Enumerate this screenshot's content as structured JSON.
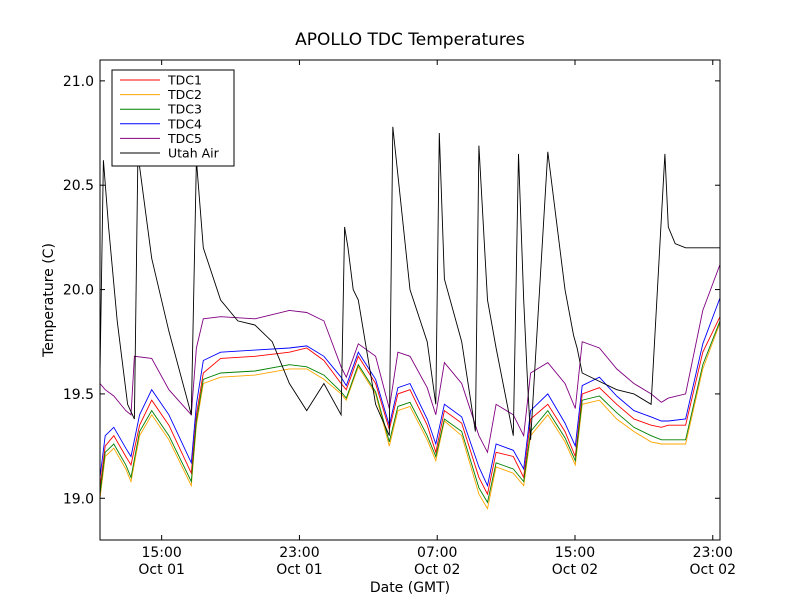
{
  "chart_data": {
    "type": "line",
    "title": "APOLLO TDC Temperatures",
    "xlabel": "Date (GMT)",
    "ylabel": "Temperature (C)",
    "x_unit": "hours since Oct 01 11:25 GMT",
    "xlim": [
      0,
      36
    ],
    "ylim": [
      18.8,
      21.1
    ],
    "legend_position": "top-left",
    "grid": false,
    "y_ticks": [
      {
        "value": 19.0,
        "label": "19.0"
      },
      {
        "value": 19.5,
        "label": "19.5"
      },
      {
        "value": 20.0,
        "label": "20.0"
      },
      {
        "value": 20.5,
        "label": "20.5"
      },
      {
        "value": 21.0,
        "label": "21.0"
      }
    ],
    "x_ticks": [
      {
        "value": 3.58,
        "time": "15:00",
        "date": "Oct 01"
      },
      {
        "value": 11.58,
        "time": "23:00",
        "date": "Oct 01"
      },
      {
        "value": 19.58,
        "time": "07:00",
        "date": "Oct 02"
      },
      {
        "value": 27.58,
        "time": "15:00",
        "date": "Oct 02"
      },
      {
        "value": 35.58,
        "time": "23:00",
        "date": "Oct 02"
      }
    ],
    "series": [
      {
        "name": "TDC1",
        "color": "#ff0000",
        "x": [
          0,
          0.3,
          0.8,
          1.5,
          1.8,
          2.3,
          3.0,
          4.0,
          5.3,
          5.6,
          6.0,
          7.0,
          9.0,
          11.0,
          12.0,
          13.0,
          14.0,
          14.3,
          15.0,
          16.0,
          16.8,
          17.3,
          18.0,
          19.0,
          19.5,
          20.0,
          21.0,
          22.0,
          22.5,
          23.0,
          24.0,
          24.6,
          25.0,
          26.0,
          27.0,
          27.6,
          28.0,
          29.0,
          30.0,
          31.0,
          32.0,
          32.6,
          33.0,
          34.0,
          35.0,
          36.0
        ],
        "y": [
          19.05,
          19.25,
          19.3,
          19.2,
          19.16,
          19.35,
          19.47,
          19.35,
          19.12,
          19.4,
          19.6,
          19.67,
          19.68,
          19.7,
          19.72,
          19.66,
          19.55,
          19.52,
          19.68,
          19.55,
          19.33,
          19.5,
          19.52,
          19.35,
          19.22,
          19.42,
          19.36,
          19.1,
          19.02,
          19.22,
          19.2,
          19.1,
          19.38,
          19.45,
          19.32,
          19.2,
          19.5,
          19.53,
          19.45,
          19.38,
          19.35,
          19.34,
          19.35,
          19.35,
          19.7,
          19.87
        ]
      },
      {
        "name": "TDC2",
        "color": "#ffa500",
        "x": [
          0,
          0.3,
          0.8,
          1.5,
          1.8,
          2.3,
          3.0,
          4.0,
          5.3,
          5.6,
          6.0,
          7.0,
          9.0,
          11.0,
          12.0,
          13.0,
          14.0,
          14.3,
          15.0,
          16.0,
          16.8,
          17.3,
          18.0,
          19.0,
          19.5,
          20.0,
          21.0,
          22.0,
          22.5,
          23.0,
          24.0,
          24.6,
          25.0,
          26.0,
          27.0,
          27.6,
          28.0,
          29.0,
          30.0,
          31.0,
          32.0,
          32.6,
          33.0,
          34.0,
          35.0,
          36.0
        ],
        "y": [
          19.0,
          19.2,
          19.24,
          19.14,
          19.08,
          19.3,
          19.4,
          19.28,
          19.06,
          19.35,
          19.55,
          19.58,
          19.59,
          19.62,
          19.62,
          19.57,
          19.5,
          19.47,
          19.63,
          19.5,
          19.25,
          19.42,
          19.44,
          19.28,
          19.18,
          19.37,
          19.3,
          19.02,
          18.95,
          19.15,
          19.12,
          19.06,
          19.3,
          19.4,
          19.27,
          19.16,
          19.45,
          19.47,
          19.38,
          19.32,
          19.27,
          19.26,
          19.26,
          19.26,
          19.62,
          19.84
        ]
      },
      {
        "name": "TDC3",
        "color": "#008000",
        "x": [
          0,
          0.3,
          0.8,
          1.5,
          1.8,
          2.3,
          3.0,
          4.0,
          5.3,
          5.6,
          6.0,
          7.0,
          9.0,
          11.0,
          12.0,
          13.0,
          14.0,
          14.3,
          15.0,
          16.0,
          16.8,
          17.3,
          18.0,
          19.0,
          19.5,
          20.0,
          21.0,
          22.0,
          22.5,
          23.0,
          24.0,
          24.6,
          25.0,
          26.0,
          27.0,
          27.6,
          28.0,
          29.0,
          30.0,
          31.0,
          32.0,
          32.6,
          33.0,
          34.0,
          35.0,
          36.0
        ],
        "y": [
          19.02,
          19.22,
          19.26,
          19.16,
          19.1,
          19.32,
          19.42,
          19.3,
          19.08,
          19.37,
          19.57,
          19.6,
          19.61,
          19.64,
          19.63,
          19.59,
          19.51,
          19.48,
          19.64,
          19.51,
          19.27,
          19.44,
          19.46,
          19.3,
          19.2,
          19.38,
          19.32,
          19.05,
          18.98,
          19.17,
          19.14,
          19.08,
          19.32,
          19.42,
          19.29,
          19.18,
          19.47,
          19.49,
          19.41,
          19.34,
          19.3,
          19.28,
          19.28,
          19.28,
          19.64,
          19.85
        ]
      },
      {
        "name": "TDC4",
        "color": "#0000ff",
        "x": [
          0,
          0.3,
          0.8,
          1.5,
          1.8,
          2.3,
          3.0,
          4.0,
          5.3,
          5.6,
          6.0,
          7.0,
          9.0,
          11.0,
          12.0,
          13.0,
          14.0,
          14.3,
          15.0,
          16.0,
          16.8,
          17.3,
          18.0,
          19.0,
          19.5,
          20.0,
          21.0,
          22.0,
          22.5,
          23.0,
          24.0,
          24.6,
          25.0,
          26.0,
          27.0,
          27.6,
          28.0,
          29.0,
          30.0,
          31.0,
          32.0,
          32.6,
          33.0,
          34.0,
          35.0,
          36.0
        ],
        "y": [
          19.1,
          19.3,
          19.34,
          19.24,
          19.2,
          19.4,
          19.52,
          19.4,
          19.17,
          19.45,
          19.66,
          19.7,
          19.71,
          19.72,
          19.73,
          19.68,
          19.58,
          19.54,
          19.7,
          19.57,
          19.35,
          19.53,
          19.55,
          19.38,
          19.26,
          19.45,
          19.39,
          19.15,
          19.06,
          19.26,
          19.23,
          19.14,
          19.42,
          19.5,
          19.36,
          19.25,
          19.54,
          19.58,
          19.49,
          19.42,
          19.39,
          19.37,
          19.37,
          19.38,
          19.74,
          19.96
        ]
      },
      {
        "name": "TDC5",
        "color": "#800080",
        "x": [
          0,
          0.3,
          0.8,
          1.5,
          1.8,
          2.0,
          3.0,
          4.0,
          5.3,
          5.6,
          6.0,
          7.0,
          9.0,
          11.0,
          12.0,
          13.0,
          14.0,
          14.3,
          15.0,
          16.0,
          16.8,
          17.3,
          18.0,
          19.0,
          19.5,
          20.0,
          21.0,
          22.0,
          22.5,
          23.0,
          24.0,
          24.6,
          25.0,
          26.0,
          27.0,
          27.6,
          28.0,
          29.0,
          30.0,
          31.0,
          32.0,
          32.6,
          33.0,
          34.0,
          35.0,
          36.0
        ],
        "y": [
          19.55,
          19.52,
          19.49,
          19.42,
          19.4,
          19.68,
          19.67,
          19.52,
          19.4,
          19.72,
          19.86,
          19.87,
          19.86,
          19.9,
          19.89,
          19.85,
          19.63,
          19.58,
          19.74,
          19.68,
          19.43,
          19.7,
          19.68,
          19.53,
          19.4,
          19.65,
          19.55,
          19.3,
          19.22,
          19.45,
          19.4,
          19.3,
          19.6,
          19.65,
          19.55,
          19.43,
          19.75,
          19.72,
          19.62,
          19.55,
          19.5,
          19.46,
          19.48,
          19.5,
          19.9,
          20.12
        ]
      },
      {
        "name": "Utah Air",
        "color": "#000000",
        "x": [
          0,
          0.2,
          0.5,
          1.0,
          1.6,
          2.0,
          2.2,
          3.0,
          4.0,
          5.3,
          5.6,
          6.0,
          7.0,
          8.0,
          9.0,
          10.0,
          11.0,
          12.0,
          13.0,
          14.0,
          14.2,
          14.4,
          14.7,
          15.0,
          16.0,
          16.8,
          17.0,
          18.0,
          19.0,
          19.5,
          19.7,
          20.0,
          21.0,
          21.8,
          22.0,
          22.5,
          23.0,
          24.0,
          24.3,
          24.6,
          24.8,
          25.0,
          26.0,
          27.0,
          27.5,
          27.7,
          28.0,
          29.0,
          30.0,
          31.0,
          32.0,
          32.8,
          33.0,
          33.4,
          34.0,
          35.0,
          36.0
        ],
        "y": [
          19.6,
          20.62,
          20.3,
          19.85,
          19.45,
          19.38,
          20.65,
          20.15,
          19.8,
          19.4,
          20.62,
          20.2,
          19.95,
          19.85,
          19.83,
          19.75,
          19.55,
          19.42,
          19.55,
          19.4,
          20.3,
          20.2,
          20.0,
          19.95,
          19.45,
          19.3,
          20.78,
          20.0,
          19.75,
          19.45,
          20.75,
          20.05,
          19.75,
          19.32,
          20.69,
          19.95,
          19.72,
          19.3,
          20.65,
          19.95,
          19.6,
          19.28,
          20.66,
          20.0,
          19.78,
          19.72,
          19.6,
          19.56,
          19.52,
          19.5,
          19.45,
          20.65,
          20.3,
          20.22,
          20.2,
          20.2,
          20.2
        ]
      }
    ]
  }
}
